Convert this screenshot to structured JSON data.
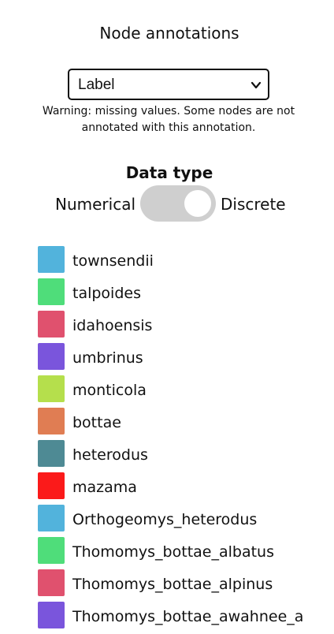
{
  "header": {
    "title": "Node annotations"
  },
  "annotation_select": {
    "value": "Label",
    "icon": "chevron-down-icon"
  },
  "warning": {
    "text": "Warning: missing values. Some nodes are not annotated with this annotation."
  },
  "data_type": {
    "title": "Data type",
    "left_label": "Numerical",
    "right_label": "Discrete",
    "selected": "Discrete"
  },
  "legend": {
    "items": [
      {
        "label": "townsendii",
        "color": "#52b3dc"
      },
      {
        "label": "talpoides",
        "color": "#4fdd7a"
      },
      {
        "label": "idahoensis",
        "color": "#e0516e"
      },
      {
        "label": "umbrinus",
        "color": "#7a55dc"
      },
      {
        "label": "monticola",
        "color": "#b5df4c"
      },
      {
        "label": "bottae",
        "color": "#e07d53"
      },
      {
        "label": "heterodus",
        "color": "#4e8a94"
      },
      {
        "label": "mazama",
        "color": "#fb1a1a"
      },
      {
        "label": "Orthogeomys_heterodus",
        "color": "#52b3dc"
      },
      {
        "label": "Thomomys_bottae_albatus",
        "color": "#4fdd7a"
      },
      {
        "label": "Thomomys_bottae_alpinus",
        "color": "#e0516e"
      },
      {
        "label": "Thomomys_bottae_awahnee_a",
        "color": "#7a55dc"
      }
    ]
  }
}
